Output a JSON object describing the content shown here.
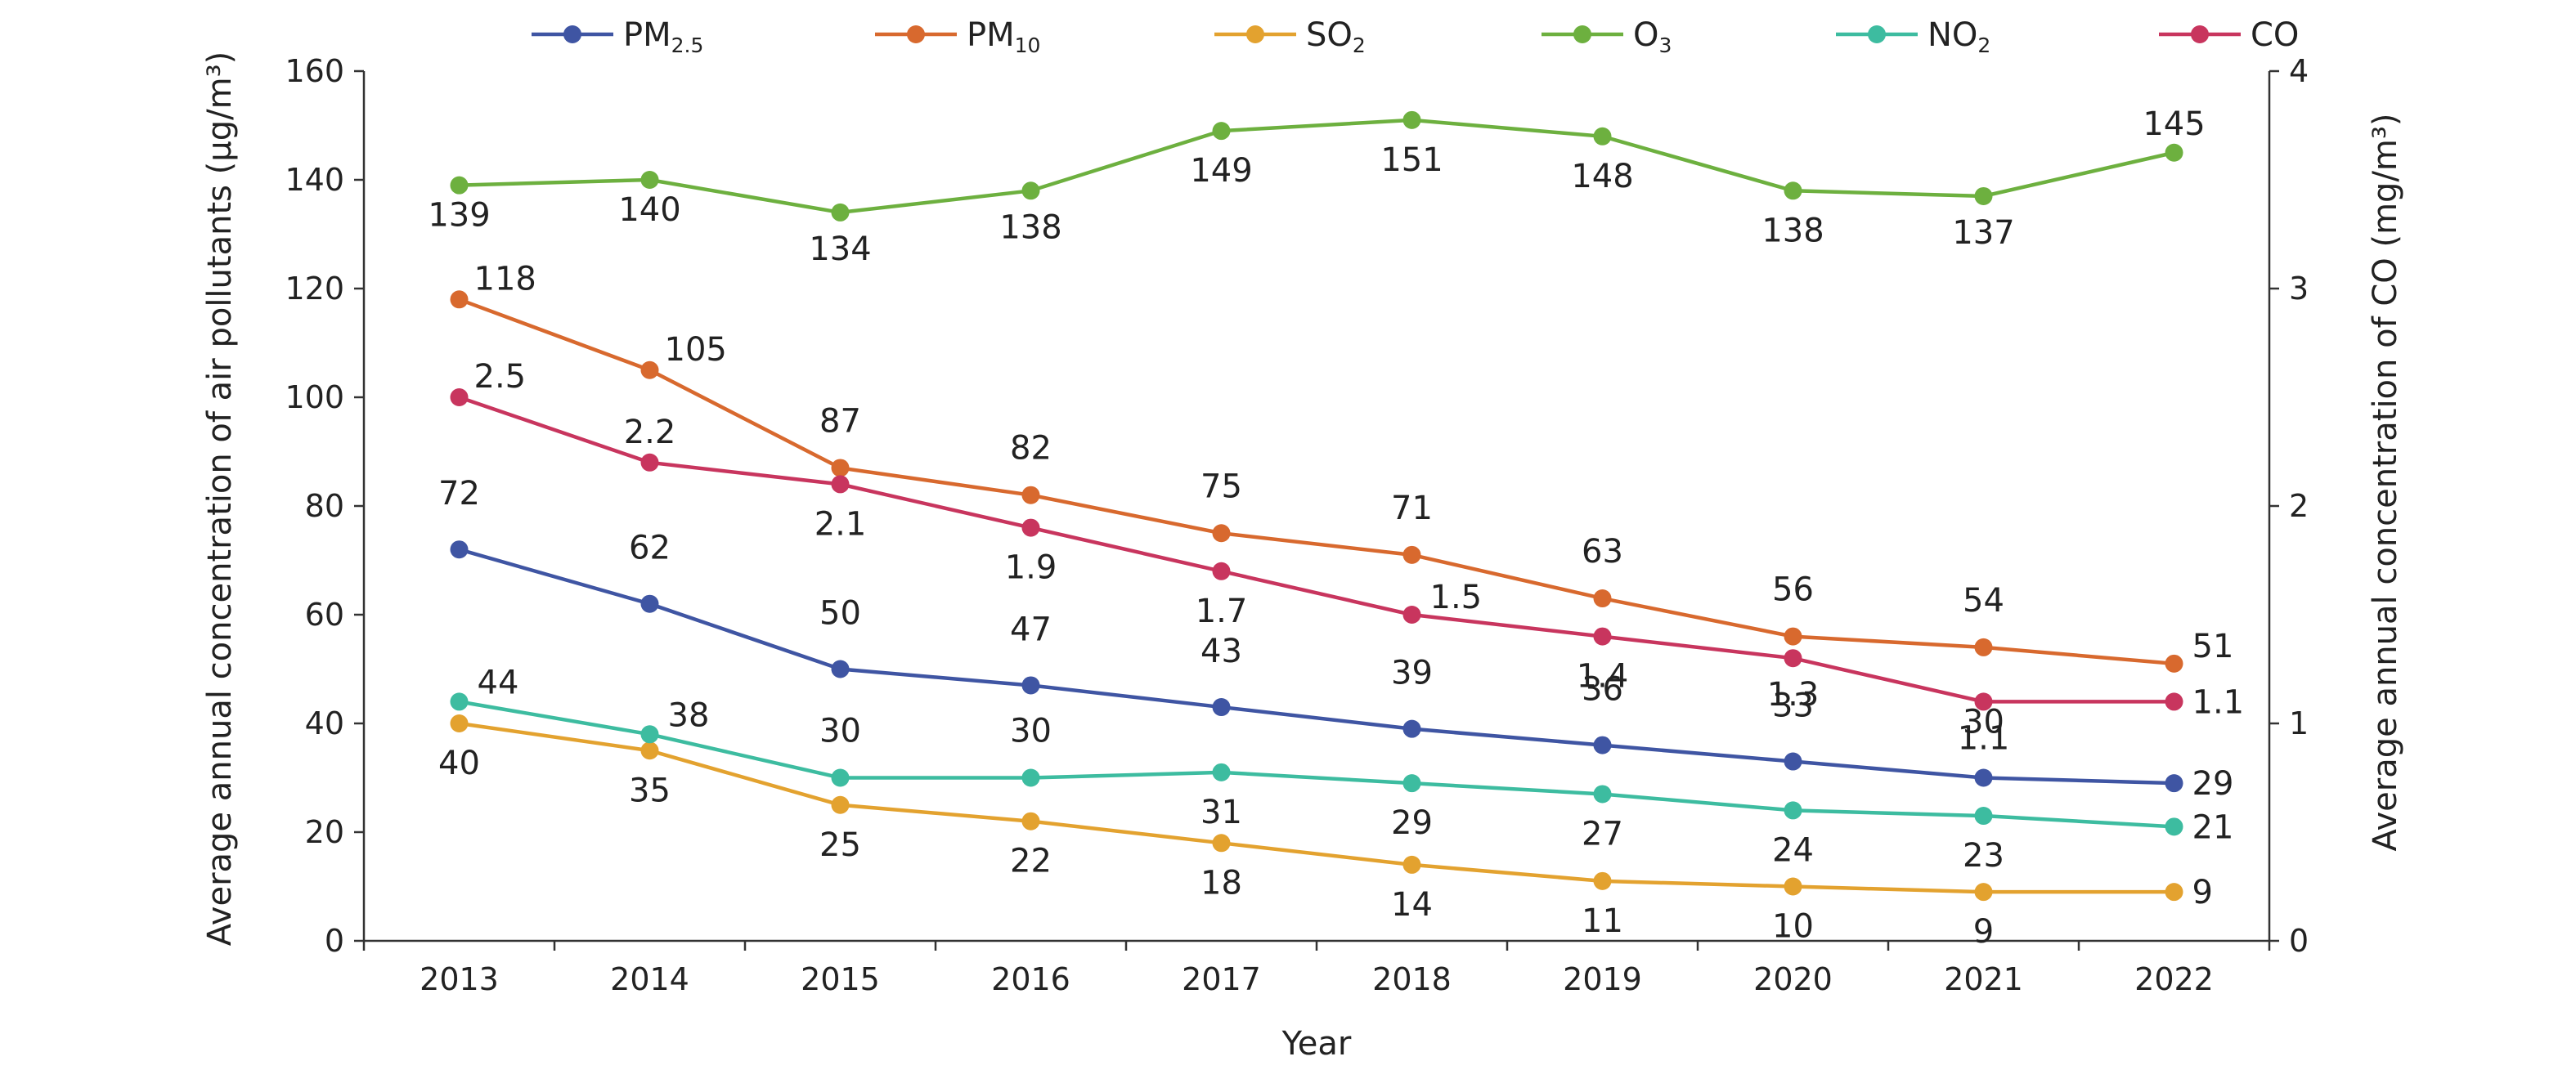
{
  "chart_data": {
    "type": "line",
    "x": [
      "2013",
      "2014",
      "2015",
      "2016",
      "2017",
      "2018",
      "2019",
      "2020",
      "2021",
      "2022"
    ],
    "xlabel": "Year",
    "ylabel": "Average annual concentration of air pollutants (μg/m³)",
    "ylabel_right": "Average annual concentration of CO (mg/m³)",
    "ylim": [
      0,
      160
    ],
    "yticks": [
      "0",
      "20",
      "40",
      "60",
      "80",
      "100",
      "120",
      "140",
      "160"
    ],
    "ylim_right": [
      0,
      4
    ],
    "yticks_right": [
      "0",
      "1",
      "2",
      "3",
      "4"
    ],
    "legend_position": "top",
    "grid": false,
    "series": [
      {
        "name": "PM",
        "sub": "2.5",
        "color": "#3F55A3",
        "axis": "left",
        "values": [
          72,
          62,
          50,
          47,
          43,
          39,
          36,
          33,
          30,
          29
        ],
        "labels": [
          "72",
          "62",
          "50",
          "47",
          "43",
          "39",
          "36",
          "33",
          "30",
          "29"
        ]
      },
      {
        "name": "PM",
        "sub": "10",
        "color": "#D8692E",
        "axis": "left",
        "values": [
          118,
          105,
          87,
          82,
          75,
          71,
          63,
          56,
          54,
          51
        ],
        "labels": [
          "118",
          "105",
          "87",
          "82",
          "75",
          "71",
          "63",
          "56",
          "54",
          "51"
        ]
      },
      {
        "name": "SO",
        "sub": "2",
        "color": "#E3A22F",
        "axis": "left",
        "values": [
          40,
          35,
          25,
          22,
          18,
          14,
          11,
          10,
          9,
          9
        ],
        "labels": [
          "40",
          "35",
          "25",
          "22",
          "18",
          "14",
          "11",
          "10",
          "9",
          "9"
        ]
      },
      {
        "name": "O",
        "sub": "3",
        "color": "#6DB03F",
        "axis": "left",
        "values": [
          139,
          140,
          134,
          138,
          149,
          151,
          148,
          138,
          137,
          145
        ],
        "labels": [
          "139",
          "140",
          "134",
          "138",
          "149",
          "151",
          "148",
          "138",
          "137",
          "145"
        ]
      },
      {
        "name": "NO",
        "sub": "2",
        "color": "#3DBCA0",
        "axis": "left",
        "values": [
          44,
          38,
          30,
          30,
          31,
          29,
          27,
          24,
          23,
          21
        ],
        "labels": [
          "44",
          "38",
          "30",
          "30",
          "31",
          "29",
          "27",
          "24",
          "23",
          "21"
        ]
      },
      {
        "name": "CO",
        "sub": "",
        "color": "#C8355E",
        "axis": "right",
        "values": [
          2.5,
          2.2,
          2.1,
          1.9,
          1.7,
          1.5,
          1.4,
          1.3,
          1.1,
          1.1
        ],
        "labels": [
          "2.5",
          "2.2",
          "2.1",
          "1.9",
          "1.7",
          "1.5",
          "1.4",
          "1.3",
          "1.1",
          "1.1"
        ]
      }
    ]
  }
}
